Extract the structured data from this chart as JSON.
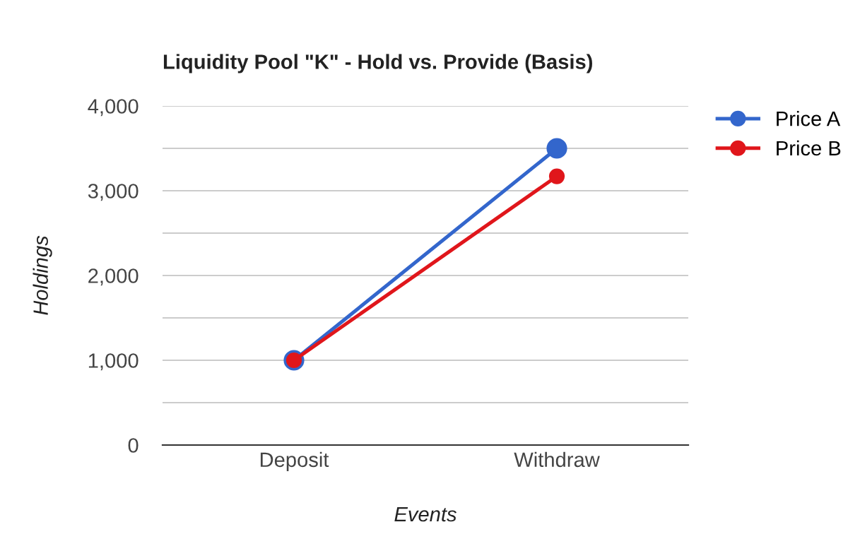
{
  "chart_data": {
    "type": "line",
    "title": "Liquidity Pool \"K\" - Hold vs. Provide (Basis)",
    "xlabel": "Events",
    "ylabel": "Holdings",
    "categories": [
      "Deposit",
      "Withdraw"
    ],
    "series": [
      {
        "name": "Price A",
        "color": "#3366cc",
        "values": [
          1000,
          3500
        ]
      },
      {
        "name": "Price B",
        "color": "#e0161b",
        "values": [
          1000,
          3170
        ]
      }
    ],
    "ylim": [
      0,
      4000
    ],
    "yticks": [
      0,
      {
        "value": 500,
        "label": null
      },
      {
        "value": 1000,
        "label": "1,000"
      },
      {
        "value": 1500,
        "label": null
      },
      {
        "value": 2000,
        "label": "2,000"
      },
      {
        "value": 2500,
        "label": null
      },
      {
        "value": 3000,
        "label": "3,000"
      },
      {
        "value": 3500,
        "label": null
      },
      {
        "value": 4000,
        "label": "4,000"
      }
    ],
    "grid": "y",
    "legend": "top right",
    "marker": "circle",
    "line_style": "solid"
  }
}
